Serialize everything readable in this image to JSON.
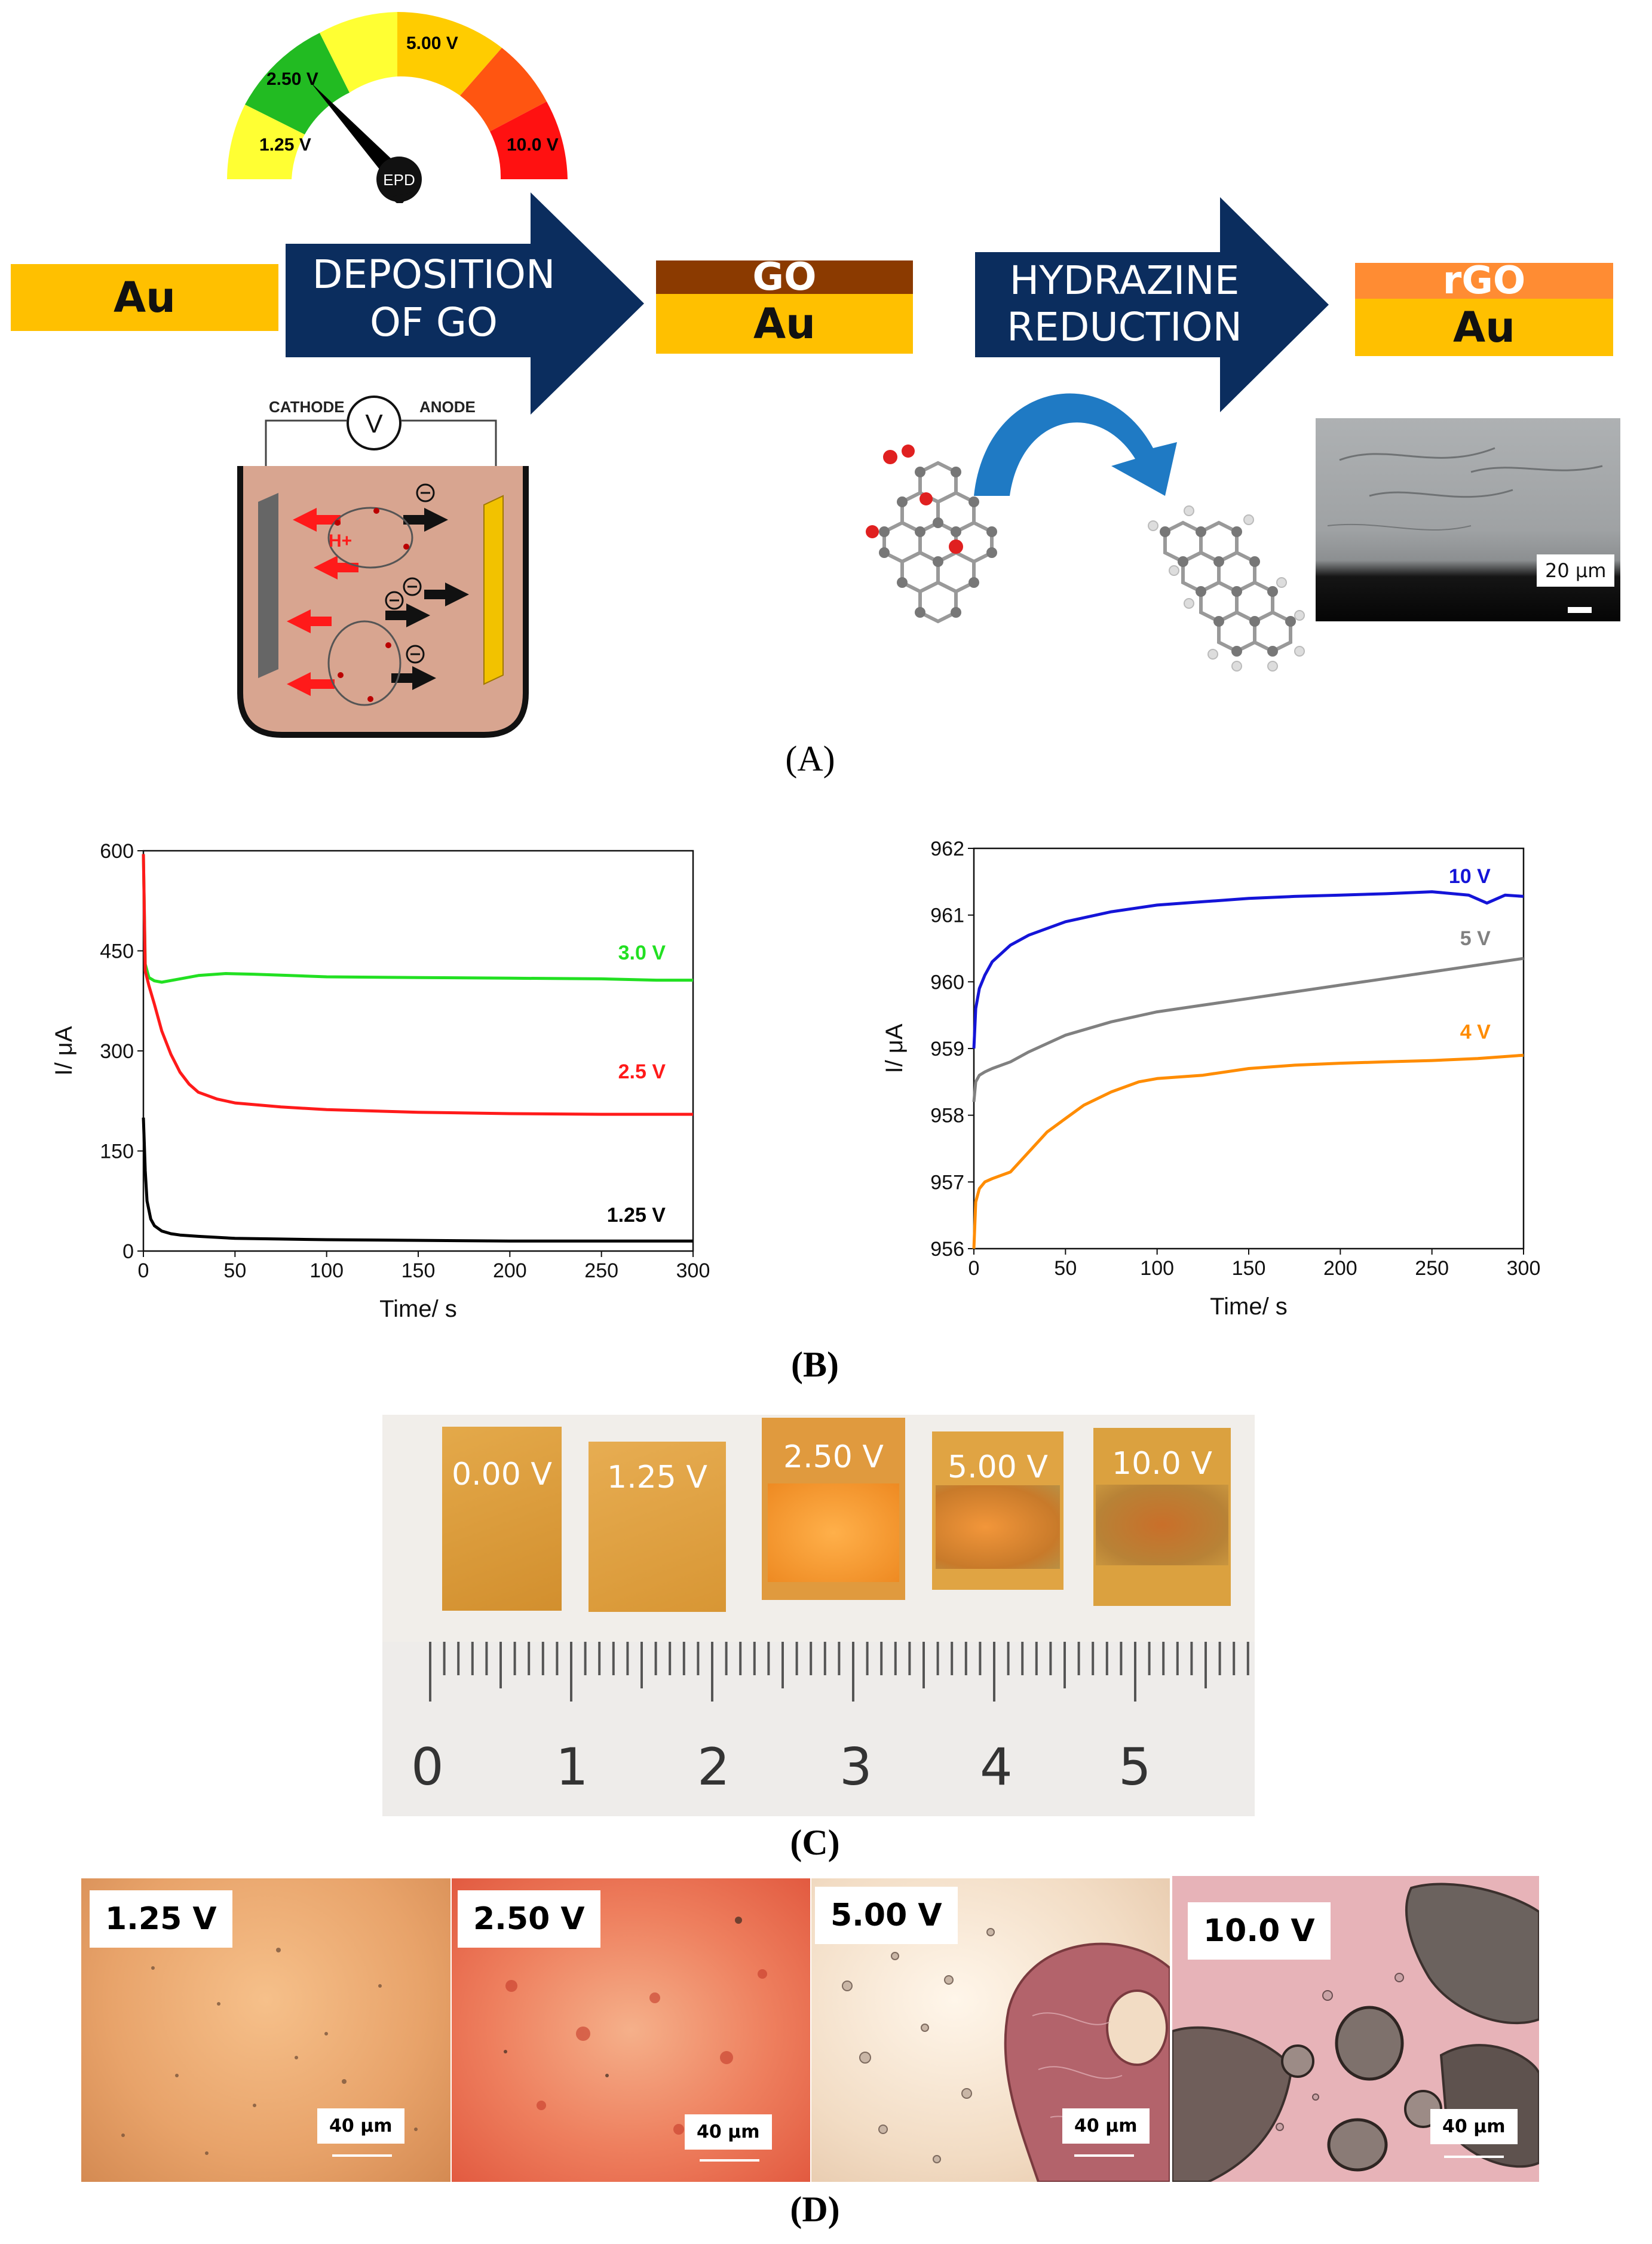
{
  "panelA": {
    "caption": "(A)",
    "gauge": {
      "labels": [
        "1.25 V",
        "2.50 V",
        "5.00 V",
        "10.0 V"
      ],
      "needle": "EPD"
    },
    "layers": {
      "au_bare": "Au",
      "go_top": "GO",
      "go_au": "Au",
      "rgo_top": "rGO",
      "rgo_au": "Au"
    },
    "arrow1": [
      "DEPOSITION",
      "OF GO"
    ],
    "arrow2": [
      "HYDRAZINE",
      "REDUCTION"
    ],
    "cell": {
      "cathode": "CATHODE",
      "anode": "ANODE",
      "voltmeter": "V",
      "proton": "H+"
    },
    "sem_scale": "20 μm"
  },
  "panelB": {
    "caption": "(B)"
  },
  "panelC": {
    "caption": "(C)",
    "chips": [
      "0.00 V",
      "1.25 V",
      "2.50 V",
      "5.00 V",
      "10.0 V"
    ],
    "ruler": [
      "0",
      "1",
      "2",
      "3",
      "4",
      "5"
    ]
  },
  "panelD": {
    "caption": "(D)",
    "images": [
      {
        "label": "1.25 V",
        "scale": "40 μm"
      },
      {
        "label": "2.50 V",
        "scale": "40 μm"
      },
      {
        "label": "5.00 V",
        "scale": "40 μm"
      },
      {
        "label": "10.0 V",
        "scale": "40 μm"
      }
    ]
  },
  "chart_data": [
    {
      "type": "line",
      "title": "",
      "xlabel": "Time/ s",
      "ylabel": "I/ μA",
      "xlim": [
        0,
        300
      ],
      "ylim": [
        0,
        600
      ],
      "xticks": [
        0,
        50,
        100,
        150,
        200,
        250,
        300
      ],
      "yticks": [
        0,
        150,
        300,
        450,
        600
      ],
      "series": [
        {
          "name": "3.0 V",
          "color": "#22e022",
          "x": [
            0,
            1,
            3,
            6,
            10,
            20,
            30,
            45,
            60,
            80,
            100,
            150,
            200,
            250,
            280,
            300
          ],
          "values": [
            595,
            430,
            410,
            405,
            403,
            408,
            413,
            416,
            415,
            413,
            411,
            410,
            409,
            408,
            406,
            406
          ]
        },
        {
          "name": "2.5 V",
          "color": "#ff1a1a",
          "x": [
            0,
            1,
            3,
            6,
            10,
            15,
            20,
            25,
            30,
            40,
            50,
            75,
            100,
            150,
            200,
            250,
            300
          ],
          "values": [
            595,
            420,
            398,
            370,
            330,
            295,
            268,
            250,
            238,
            228,
            222,
            216,
            212,
            208,
            206,
            205,
            205
          ]
        },
        {
          "name": "1.25 V",
          "color": "#000000",
          "x": [
            0,
            1,
            2,
            4,
            6,
            10,
            15,
            20,
            30,
            50,
            75,
            100,
            150,
            200,
            250,
            300
          ],
          "values": [
            200,
            120,
            75,
            48,
            38,
            30,
            26,
            24,
            22,
            19,
            18,
            17,
            16,
            15,
            15,
            15
          ]
        }
      ]
    },
    {
      "type": "line",
      "title": "",
      "xlabel": "Time/ s",
      "ylabel": "I/ μA",
      "xlim": [
        0,
        300
      ],
      "ylim": [
        956,
        962
      ],
      "xticks": [
        0,
        50,
        100,
        150,
        200,
        250,
        300
      ],
      "yticks": [
        956,
        957,
        958,
        959,
        960,
        961,
        962
      ],
      "series": [
        {
          "name": "10 V",
          "color": "#1414d8",
          "x": [
            0,
            1,
            3,
            6,
            10,
            20,
            30,
            50,
            75,
            100,
            125,
            150,
            175,
            200,
            225,
            250,
            270,
            280,
            290,
            300
          ],
          "values": [
            959.0,
            959.6,
            959.9,
            960.1,
            960.3,
            960.55,
            960.7,
            960.9,
            961.05,
            961.15,
            961.2,
            961.25,
            961.28,
            961.3,
            961.32,
            961.35,
            961.3,
            961.18,
            961.3,
            961.28
          ]
        },
        {
          "name": "5 V",
          "color": "#808080",
          "x": [
            0,
            1,
            3,
            6,
            10,
            20,
            30,
            50,
            75,
            100,
            125,
            150,
            175,
            200,
            225,
            250,
            275,
            300
          ],
          "values": [
            958.2,
            958.5,
            958.6,
            958.65,
            958.7,
            958.8,
            958.95,
            959.2,
            959.4,
            959.55,
            959.65,
            959.75,
            959.85,
            959.95,
            960.05,
            960.15,
            960.25,
            960.35
          ]
        },
        {
          "name": "4 V",
          "color": "#ff8c00",
          "x": [
            0,
            1,
            3,
            6,
            10,
            20,
            30,
            40,
            50,
            60,
            75,
            90,
            100,
            125,
            150,
            175,
            200,
            225,
            250,
            275,
            300
          ],
          "values": [
            956.0,
            956.7,
            956.9,
            957.0,
            957.05,
            957.15,
            957.45,
            957.75,
            957.95,
            958.15,
            958.35,
            958.5,
            958.55,
            958.6,
            958.7,
            958.75,
            958.78,
            958.8,
            958.82,
            958.85,
            958.9
          ]
        }
      ]
    }
  ]
}
